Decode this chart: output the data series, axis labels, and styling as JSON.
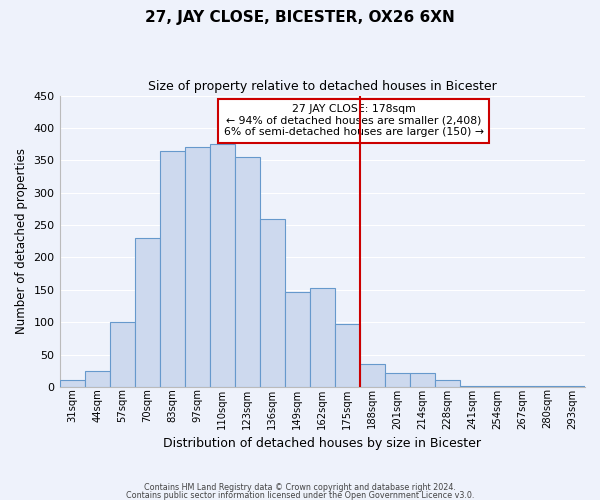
{
  "title": "27, JAY CLOSE, BICESTER, OX26 6XN",
  "subtitle": "Size of property relative to detached houses in Bicester",
  "xlabel": "Distribution of detached houses by size in Bicester",
  "ylabel": "Number of detached properties",
  "bar_labels": [
    "31sqm",
    "44sqm",
    "57sqm",
    "70sqm",
    "83sqm",
    "97sqm",
    "110sqm",
    "123sqm",
    "136sqm",
    "149sqm",
    "162sqm",
    "175sqm",
    "188sqm",
    "201sqm",
    "214sqm",
    "228sqm",
    "241sqm",
    "254sqm",
    "267sqm",
    "280sqm",
    "293sqm"
  ],
  "bar_heights": [
    10,
    25,
    100,
    230,
    365,
    370,
    375,
    355,
    260,
    147,
    153,
    97,
    35,
    22,
    22,
    11,
    2,
    2,
    2,
    2,
    2
  ],
  "bar_color": "#cdd9ee",
  "bar_edge_color": "#6699cc",
  "ylim": [
    0,
    450
  ],
  "yticks": [
    0,
    50,
    100,
    150,
    200,
    250,
    300,
    350,
    400,
    450
  ],
  "vline_color": "#cc0000",
  "annotation_title": "27 JAY CLOSE: 178sqm",
  "annotation_line1": "← 94% of detached houses are smaller (2,408)",
  "annotation_line2": "6% of semi-detached houses are larger (150) →",
  "annotation_box_edge": "#cc0000",
  "footer_line1": "Contains HM Land Registry data © Crown copyright and database right 2024.",
  "footer_line2": "Contains public sector information licensed under the Open Government Licence v3.0.",
  "background_color": "#eef2fb",
  "grid_color": "#ffffff"
}
